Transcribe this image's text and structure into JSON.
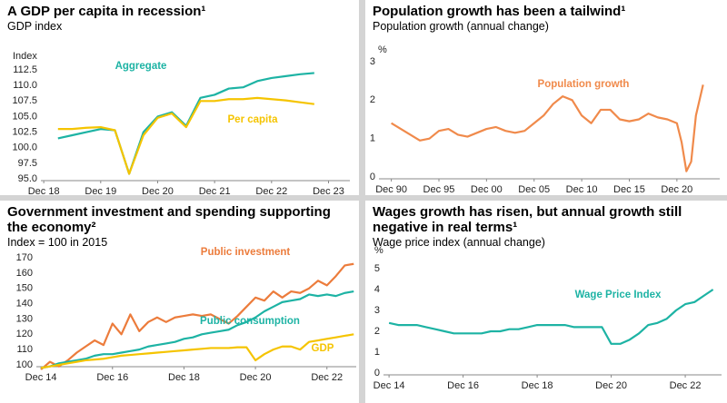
{
  "chart_data": [
    {
      "type": "line",
      "title": "A GDP per capita in recession¹",
      "subtitle": "GDP index",
      "ylabel": "Index",
      "x": [
        1,
        2,
        3,
        4,
        5,
        6,
        7,
        8,
        9,
        10,
        11,
        12,
        13,
        14,
        15,
        16,
        17,
        18,
        19
      ],
      "series": [
        {
          "name": "Aggregate",
          "color": "#1db3a4",
          "values": [
            101.5,
            102,
            102.5,
            103,
            102.8,
            95.8,
            102.5,
            105,
            105.7,
            103.5,
            108,
            108.5,
            109.5,
            109.7,
            110.7,
            111.2,
            111.5,
            111.8,
            112
          ]
        },
        {
          "name": "Per capita",
          "color": "#f5c400",
          "values": [
            103,
            103,
            103.2,
            103.3,
            102.8,
            95.8,
            102,
            104.8,
            105.5,
            103.3,
            107.5,
            107.5,
            107.8,
            107.8,
            108,
            107.8,
            107.6,
            107.3,
            107
          ]
        }
      ],
      "xlim": [
        -0.2,
        21.5
      ],
      "xticks": [
        {
          "value": 0,
          "label": "Dec 18"
        },
        {
          "value": 4,
          "label": "Dec 19"
        },
        {
          "value": 8,
          "label": "Dec 20"
        },
        {
          "value": 12,
          "label": "Dec 21"
        },
        {
          "value": 16,
          "label": "Dec 22"
        },
        {
          "value": 20,
          "label": "Dec 23"
        }
      ],
      "ylim": [
        95,
        112.5
      ],
      "yticks": [
        {
          "value": 95,
          "label": "95.0"
        },
        {
          "value": 97.5,
          "label": "97.5"
        },
        {
          "value": 100,
          "label": "100.0"
        },
        {
          "value": 102.5,
          "label": "102.5"
        },
        {
          "value": 105,
          "label": "105.0"
        },
        {
          "value": 107.5,
          "label": "107.5"
        },
        {
          "value": 110,
          "label": "110.0"
        },
        {
          "value": 112.5,
          "label": "112.5"
        }
      ]
    },
    {
      "type": "line",
      "title": "Population growth has been a tailwind¹",
      "subtitle": "Population growth (annual change)",
      "ylabel": "%",
      "x": [
        1990,
        1991,
        1992,
        1993,
        1994,
        1995,
        1996,
        1997,
        1998,
        1999,
        2000,
        2001,
        2002,
        2003,
        2004,
        2005,
        2006,
        2007,
        2008,
        2009,
        2010,
        2011,
        2012,
        2013,
        2014,
        2015,
        2016,
        2017,
        2018,
        2019,
        2020,
        2020.5,
        2021,
        2021.5,
        2022,
        2022.75
      ],
      "series": [
        {
          "name": "Population growth",
          "color": "#f08a4b",
          "values": [
            1.4,
            1.25,
            1.1,
            0.95,
            1.0,
            1.2,
            1.25,
            1.1,
            1.05,
            1.15,
            1.25,
            1.3,
            1.2,
            1.15,
            1.2,
            1.4,
            1.6,
            1.9,
            2.1,
            2.0,
            1.6,
            1.4,
            1.75,
            1.75,
            1.5,
            1.45,
            1.5,
            1.65,
            1.55,
            1.5,
            1.4,
            0.9,
            0.15,
            0.4,
            1.6,
            2.4
          ]
        }
      ],
      "xlim": [
        1988.7,
        2024.5
      ],
      "xticks": [
        {
          "value": 1990,
          "label": "Dec 90"
        },
        {
          "value": 1995,
          "label": "Dec 95"
        },
        {
          "value": 2000,
          "label": "Dec 00"
        },
        {
          "value": 2005,
          "label": "Dec 05"
        },
        {
          "value": 2010,
          "label": "Dec 10"
        },
        {
          "value": 2015,
          "label": "Dec 15"
        },
        {
          "value": 2020,
          "label": "Dec 20"
        }
      ],
      "ylim": [
        0,
        3
      ],
      "yticks": [
        0,
        1,
        2,
        3
      ]
    },
    {
      "type": "line",
      "title": "Government investment and spending supporting the economy²",
      "subtitle": "Index = 100 in 2015",
      "x": [
        2014,
        2014.25,
        2014.5,
        2014.75,
        2015,
        2015.25,
        2015.5,
        2015.75,
        2016,
        2016.25,
        2016.5,
        2016.75,
        2017,
        2017.25,
        2017.5,
        2017.75,
        2018,
        2018.25,
        2018.5,
        2018.75,
        2019,
        2019.25,
        2019.5,
        2019.75,
        2020,
        2020.25,
        2020.5,
        2020.75,
        2021,
        2021.25,
        2021.5,
        2021.75,
        2022,
        2022.25,
        2022.5,
        2022.75
      ],
      "series": [
        {
          "name": "Public investment",
          "color": "#ec7c3c",
          "values": [
            97,
            102,
            99,
            103,
            108,
            112,
            116,
            113,
            127,
            120,
            133,
            122,
            128,
            131,
            128,
            131,
            132,
            133,
            132,
            133,
            130,
            127,
            132,
            138,
            144,
            142,
            148,
            144,
            148,
            147,
            150,
            155,
            152,
            158,
            165,
            166
          ]
        },
        {
          "name": "Public consumption",
          "color": "#1db3a4",
          "values": [
            98,
            99,
            101,
            102,
            103,
            104,
            106,
            107,
            107,
            108,
            109,
            110,
            112,
            113,
            114,
            115,
            117,
            118,
            120,
            121,
            122,
            123,
            126,
            128,
            131,
            135,
            138,
            141,
            142,
            143,
            146,
            145,
            146,
            145,
            147,
            148
          ]
        },
        {
          "name": "GDP",
          "color": "#f5c400",
          "values": [
            98,
            99,
            100,
            101,
            102,
            103,
            103.5,
            104,
            105,
            106,
            106.5,
            107,
            107.5,
            108,
            108.5,
            109,
            109.5,
            110,
            110.5,
            111,
            111,
            111,
            111.5,
            111.5,
            103,
            107,
            110,
            112,
            112,
            110,
            115,
            116,
            117,
            118,
            119,
            120
          ]
        }
      ],
      "xlim": [
        2013.87,
        2022.82
      ],
      "xticks": [
        {
          "value": 2014,
          "label": "Dec 14"
        },
        {
          "value": 2016,
          "label": "Dec 16"
        },
        {
          "value": 2018,
          "label": "Dec 18"
        },
        {
          "value": 2020,
          "label": "Dec 20"
        },
        {
          "value": 2022,
          "label": "Dec 22"
        }
      ],
      "ylim": [
        100,
        170
      ],
      "yticks": [
        100,
        110,
        120,
        130,
        140,
        150,
        160,
        170
      ]
    },
    {
      "type": "line",
      "title": "Wages growth has risen, but annual growth still negative in real terms¹",
      "subtitle": "Wage price index (annual change)",
      "ylabel": "%",
      "x": [
        2014,
        2014.25,
        2014.5,
        2014.75,
        2015,
        2015.25,
        2015.5,
        2015.75,
        2016,
        2016.25,
        2016.5,
        2016.75,
        2017,
        2017.25,
        2017.5,
        2017.75,
        2018,
        2018.25,
        2018.5,
        2018.75,
        2019,
        2019.25,
        2019.5,
        2019.75,
        2020,
        2020.25,
        2020.5,
        2020.75,
        2021,
        2021.25,
        2021.5,
        2021.75,
        2022,
        2022.25,
        2022.5,
        2022.75
      ],
      "series": [
        {
          "name": "Wage Price Index",
          "color": "#1db3a4",
          "values": [
            2.4,
            2.3,
            2.3,
            2.3,
            2.2,
            2.1,
            2.0,
            1.9,
            1.9,
            1.9,
            1.9,
            2.0,
            2.0,
            2.1,
            2.1,
            2.2,
            2.3,
            2.3,
            2.3,
            2.3,
            2.2,
            2.2,
            2.2,
            2.2,
            1.4,
            1.4,
            1.6,
            1.9,
            2.3,
            2.4,
            2.6,
            3.0,
            3.3,
            3.4,
            3.7,
            4.0
          ]
        }
      ],
      "xlim": [
        2013.85,
        2022.98
      ],
      "xticks": [
        {
          "value": 2014,
          "label": "Dec 14"
        },
        {
          "value": 2016,
          "label": "Dec 16"
        },
        {
          "value": 2018,
          "label": "Dec 18"
        },
        {
          "value": 2020,
          "label": "Dec 20"
        },
        {
          "value": 2022,
          "label": "Dec 22"
        }
      ],
      "ylim": [
        0,
        5
      ],
      "yticks": [
        0,
        1,
        2,
        3,
        4,
        5
      ]
    }
  ]
}
